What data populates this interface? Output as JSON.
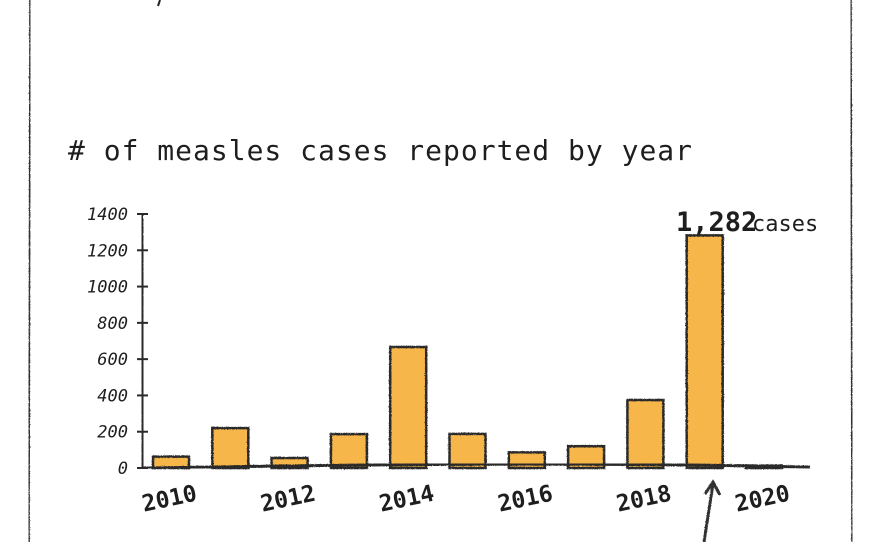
{
  "chart_data": {
    "type": "bar",
    "title": "# of measles cases reported by year",
    "xlabel": "",
    "ylabel": "",
    "categories": [
      "2010",
      "2011",
      "2012",
      "2013",
      "2014",
      "2015",
      "2016",
      "2017",
      "2018",
      "2019",
      "2020"
    ],
    "x_tick_labels": [
      "2010",
      "2012",
      "2014",
      "2016",
      "2018",
      "2020"
    ],
    "y_tick_labels": [
      "0",
      "200",
      "400",
      "600",
      "800",
      "1000",
      "1200",
      "1400"
    ],
    "values": [
      63,
      220,
      55,
      187,
      667,
      188,
      86,
      120,
      375,
      1282,
      13
    ],
    "ylim": [
      0,
      1400
    ],
    "grid": false,
    "bar_color": "#f6b64a",
    "annotation": {
      "number": "1,282",
      "unit": "cases",
      "category": "2019"
    }
  }
}
